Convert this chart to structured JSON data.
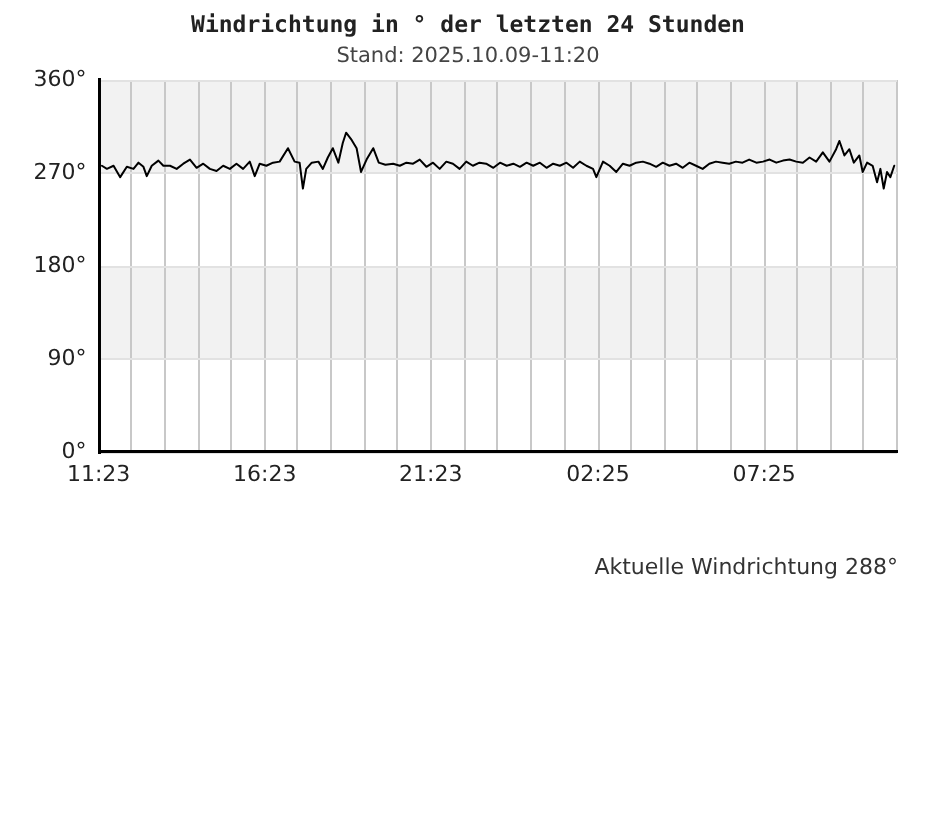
{
  "chart_data": {
    "type": "line",
    "title": "Windrichtung in ° der letzten 24 Stunden",
    "subtitle": "Stand: 2025.10.09-11:20",
    "x": [
      "2025-10-08T11:29",
      "2025-10-08T11:38",
      "2025-10-08T11:50",
      "2025-10-08T12:02",
      "2025-10-08T12:14",
      "2025-10-08T12:26",
      "2025-10-08T12:35",
      "2025-10-08T12:44",
      "2025-10-08T12:50",
      "2025-10-08T12:59",
      "2025-10-08T13:11",
      "2025-10-08T13:20",
      "2025-10-08T13:32",
      "2025-10-08T13:44",
      "2025-10-08T13:56",
      "2025-10-08T14:08",
      "2025-10-08T14:20",
      "2025-10-08T14:32",
      "2025-10-08T14:44",
      "2025-10-08T14:56",
      "2025-10-08T15:08",
      "2025-10-08T15:20",
      "2025-10-08T15:32",
      "2025-10-08T15:44",
      "2025-10-08T15:56",
      "2025-10-08T16:05",
      "2025-10-08T16:14",
      "2025-10-08T16:26",
      "2025-10-08T16:38",
      "2025-10-08T16:50",
      "2025-10-08T17:05",
      "2025-10-08T17:17",
      "2025-10-08T17:26",
      "2025-10-08T17:32",
      "2025-10-08T17:38",
      "2025-10-08T17:48",
      "2025-10-08T18:00",
      "2025-10-08T18:08",
      "2025-10-08T18:17",
      "2025-10-08T18:26",
      "2025-10-08T18:36",
      "2025-10-08T18:44",
      "2025-10-08T18:50",
      "2025-10-08T19:00",
      "2025-10-08T19:09",
      "2025-10-08T19:17",
      "2025-10-08T19:27",
      "2025-10-08T19:39",
      "2025-10-08T19:49",
      "2025-10-08T20:01",
      "2025-10-08T20:15",
      "2025-10-08T20:27",
      "2025-10-08T20:39",
      "2025-10-08T20:51",
      "2025-10-08T21:03",
      "2025-10-08T21:15",
      "2025-10-08T21:27",
      "2025-10-08T21:39",
      "2025-10-08T21:51",
      "2025-10-08T22:03",
      "2025-10-08T22:15",
      "2025-10-08T22:27",
      "2025-10-08T22:39",
      "2025-10-08T22:51",
      "2025-10-08T23:03",
      "2025-10-08T23:16",
      "2025-10-08T23:28",
      "2025-10-08T23:40",
      "2025-10-08T23:52",
      "2025-10-09T00:04",
      "2025-10-09T00:16",
      "2025-10-09T00:28",
      "2025-10-09T00:40",
      "2025-10-09T00:52",
      "2025-10-09T01:04",
      "2025-10-09T01:16",
      "2025-10-09T01:28",
      "2025-10-09T01:40",
      "2025-10-09T01:52",
      "2025-10-09T02:04",
      "2025-10-09T02:16",
      "2025-10-09T02:22",
      "2025-10-09T02:34",
      "2025-10-09T02:46",
      "2025-10-09T02:58",
      "2025-10-09T03:10",
      "2025-10-09T03:22",
      "2025-10-09T03:34",
      "2025-10-09T03:46",
      "2025-10-09T03:58",
      "2025-10-09T04:10",
      "2025-10-09T04:22",
      "2025-10-09T04:34",
      "2025-10-09T04:46",
      "2025-10-09T04:58",
      "2025-10-09T05:10",
      "2025-10-09T05:22",
      "2025-10-09T05:34",
      "2025-10-09T05:46",
      "2025-10-09T05:58",
      "2025-10-09T06:10",
      "2025-10-09T06:22",
      "2025-10-09T06:34",
      "2025-10-09T06:46",
      "2025-10-09T06:58",
      "2025-10-09T07:11",
      "2025-10-09T07:23",
      "2025-10-09T07:35",
      "2025-10-09T07:47",
      "2025-10-09T07:59",
      "2025-10-09T08:11",
      "2025-10-09T08:23",
      "2025-10-09T08:35",
      "2025-10-09T08:47",
      "2025-10-09T08:59",
      "2025-10-09T09:11",
      "2025-10-09T09:23",
      "2025-10-09T09:35",
      "2025-10-09T09:41",
      "2025-10-09T09:50",
      "2025-10-09T09:59",
      "2025-10-09T10:07",
      "2025-10-09T10:17",
      "2025-10-09T10:23",
      "2025-10-09T10:31",
      "2025-10-09T10:41",
      "2025-10-09T10:49",
      "2025-10-09T10:55",
      "2025-10-09T11:01",
      "2025-10-09T11:07",
      "2025-10-09T11:13",
      "2025-10-09T11:20"
    ],
    "series": [
      {
        "color": "#000000",
        "values": [
          277,
          274,
          277,
          266,
          276,
          274,
          280,
          276,
          267,
          277,
          282,
          277,
          277,
          274,
          279,
          283,
          275,
          279,
          274,
          272,
          277,
          274,
          279,
          274,
          281,
          267,
          279,
          277,
          280,
          281,
          294,
          281,
          280,
          255,
          274,
          280,
          281,
          274,
          285,
          294,
          280,
          299,
          309,
          302,
          294,
          271,
          283,
          294,
          280,
          278,
          279,
          277,
          280,
          279,
          283,
          276,
          280,
          274,
          281,
          279,
          274,
          281,
          277,
          280,
          279,
          275,
          280,
          277,
          279,
          276,
          280,
          277,
          280,
          275,
          279,
          277,
          280,
          275,
          281,
          277,
          274,
          266,
          281,
          277,
          271,
          279,
          277,
          280,
          281,
          279,
          276,
          280,
          277,
          279,
          275,
          280,
          277,
          274,
          279,
          281,
          280,
          279,
          281,
          280,
          283,
          280,
          281,
          283,
          280,
          282,
          283,
          281,
          280,
          285,
          281,
          290,
          281,
          293,
          301,
          287,
          293,
          280,
          287,
          271,
          280,
          277,
          261,
          274,
          255,
          271,
          266,
          277
        ]
      }
    ],
    "xlim": [
      "2025-10-08T11:23",
      "2025-10-09T11:25"
    ],
    "xticks": [
      {
        "value": "2025-10-08T11:23",
        "label": "11:23"
      },
      {
        "value": "2025-10-08T12:23",
        "label": null
      },
      {
        "value": "2025-10-08T13:23",
        "label": null
      },
      {
        "value": "2025-10-08T14:23",
        "label": null
      },
      {
        "value": "2025-10-08T15:23",
        "label": null
      },
      {
        "value": "2025-10-08T16:23",
        "label": "16:23"
      },
      {
        "value": "2025-10-08T17:23",
        "label": null
      },
      {
        "value": "2025-10-08T18:23",
        "label": null
      },
      {
        "value": "2025-10-08T19:23",
        "label": null
      },
      {
        "value": "2025-10-08T20:23",
        "label": null
      },
      {
        "value": "2025-10-08T21:23",
        "label": "21:23"
      },
      {
        "value": "2025-10-08T22:23",
        "label": null
      },
      {
        "value": "2025-10-08T23:23",
        "label": null
      },
      {
        "value": "2025-10-09T00:25",
        "label": null
      },
      {
        "value": "2025-10-09T01:25",
        "label": null
      },
      {
        "value": "2025-10-09T02:25",
        "label": "02:25"
      },
      {
        "value": "2025-10-09T03:25",
        "label": null
      },
      {
        "value": "2025-10-09T04:25",
        "label": null
      },
      {
        "value": "2025-10-09T05:25",
        "label": null
      },
      {
        "value": "2025-10-09T06:25",
        "label": null
      },
      {
        "value": "2025-10-09T07:25",
        "label": "07:25"
      },
      {
        "value": "2025-10-09T08:25",
        "label": null
      },
      {
        "value": "2025-10-09T09:25",
        "label": null
      },
      {
        "value": "2025-10-09T10:25",
        "label": null
      },
      {
        "value": "2025-10-09T11:25",
        "label": null
      }
    ],
    "ylim": [
      0,
      360
    ],
    "yticks": [
      {
        "value": 0,
        "label": "0°"
      },
      {
        "value": 90,
        "label": "90°"
      },
      {
        "value": 180,
        "label": "180°"
      },
      {
        "value": 270,
        "label": "270°"
      },
      {
        "value": 360,
        "label": "360°"
      }
    ],
    "grid": true,
    "bands": [
      {
        "axis": "y",
        "from": 90,
        "to": 180,
        "color": "#f2f2f2"
      },
      {
        "axis": "y",
        "from": 270,
        "to": 360,
        "color": "#f2f2f2"
      }
    ],
    "annotations": [
      "Aktuelle Windrichtung 288°"
    ]
  }
}
